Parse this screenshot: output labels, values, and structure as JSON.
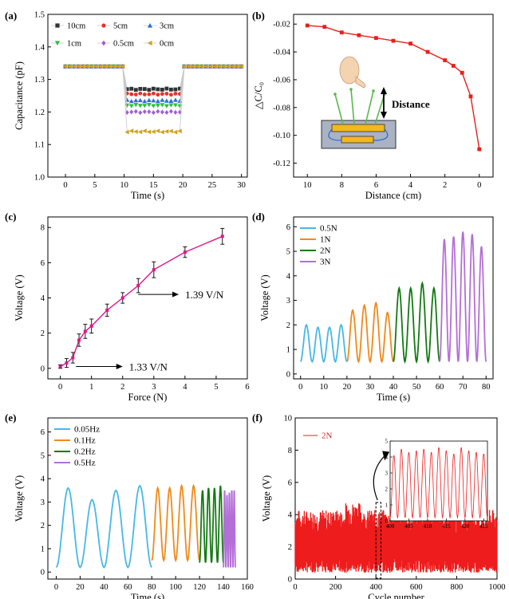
{
  "chart_data": [
    {
      "id": "a",
      "panel_label": "(a)",
      "type": "scatter",
      "xlabel": "Time (s)",
      "ylabel": "Capacitance (pF)",
      "xlim": [
        -3,
        31
      ],
      "ylim": [
        1.0,
        1.5
      ],
      "xticks": [
        0,
        5,
        10,
        15,
        20,
        25,
        30
      ],
      "yticks": [
        1.0,
        1.1,
        1.2,
        1.3,
        1.4,
        1.5
      ],
      "xtick_labels": [
        "0",
        "5",
        "10",
        "15",
        "20",
        "25",
        "30"
      ],
      "ytick_labels": [
        "1.0",
        "1.1",
        "1.2",
        "1.3",
        "1.4",
        "1.5"
      ],
      "baseline": 1.34,
      "press_start": 9.8,
      "press_end": 19.8,
      "legend_position": "top-left",
      "series": [
        {
          "name": "10cm",
          "color": "#333333",
          "marker": "square",
          "pressed": 1.27
        },
        {
          "name": "5cm",
          "color": "#e8302a",
          "marker": "circle",
          "pressed": 1.255
        },
        {
          "name": "3cm",
          "color": "#2a6fdc",
          "marker": "triangle-up",
          "pressed": 1.235
        },
        {
          "name": "1cm",
          "color": "#2bbf3c",
          "marker": "triangle-down",
          "pressed": 1.22
        },
        {
          "name": "0.5cm",
          "color": "#a35bd6",
          "marker": "diamond",
          "pressed": 1.2
        },
        {
          "name": "0cm",
          "color": "#d4a017",
          "marker": "triangle-left",
          "pressed": 1.14
        }
      ]
    },
    {
      "id": "b",
      "panel_label": "(b)",
      "type": "line",
      "xlabel": "Distance (cm)",
      "ylabel": "△C/C₀",
      "xlim": [
        10.8,
        -0.8
      ],
      "ylim": [
        -0.13,
        -0.013
      ],
      "xticks": [
        10,
        8,
        6,
        4,
        2,
        0
      ],
      "yticks": [
        -0.02,
        -0.04,
        -0.06,
        -0.08,
        -0.1,
        -0.12
      ],
      "xtick_labels": [
        "10",
        "8",
        "6",
        "4",
        "2",
        "0"
      ],
      "ytick_labels": [
        "-0.02",
        "-0.04",
        "-0.06",
        "-0.08",
        "-0.10",
        "-0.12"
      ],
      "x": [
        10,
        9,
        8,
        7,
        6,
        5,
        4,
        3,
        2,
        1.5,
        1,
        0.5,
        0
      ],
      "y": [
        -0.021,
        -0.022,
        -0.026,
        -0.028,
        -0.03,
        -0.032,
        -0.034,
        -0.04,
        -0.046,
        -0.05,
        -0.055,
        -0.072,
        -0.11
      ],
      "color": "#e8201a",
      "annotation": "Distance"
    },
    {
      "id": "c",
      "panel_label": "(c)",
      "type": "line",
      "xlabel": "Force (N)",
      "ylabel": "Voltage (V)",
      "xlim": [
        -0.4,
        6
      ],
      "ylim": [
        -0.6,
        8.6
      ],
      "xticks": [
        0,
        1,
        2,
        3,
        4,
        5,
        6
      ],
      "yticks": [
        0,
        2,
        4,
        6,
        8
      ],
      "xtick_labels": [
        "0",
        "1",
        "2",
        "3",
        "4",
        "5",
        "6"
      ],
      "ytick_labels": [
        "0",
        "2",
        "4",
        "6",
        "8"
      ],
      "x": [
        0,
        0.2,
        0.4,
        0.6,
        0.8,
        1.0,
        1.5,
        2.0,
        2.5,
        3.0,
        4.0,
        5.2
      ],
      "y": [
        0.1,
        0.3,
        0.6,
        1.6,
        2.1,
        2.4,
        3.3,
        4.0,
        4.7,
        5.6,
        6.6,
        7.5
      ],
      "err": [
        0.1,
        0.25,
        0.3,
        0.35,
        0.4,
        0.4,
        0.35,
        0.3,
        0.4,
        0.45,
        0.3,
        0.45
      ],
      "color": "#e0168c",
      "annotations": [
        {
          "text": "1.33 V/N",
          "arrow_from": [
            0.5,
            0.1
          ],
          "arrow_to": [
            2.0,
            0.1
          ]
        },
        {
          "text": "1.39 V/N",
          "arrow_from": [
            2.5,
            4.2
          ],
          "arrow_to": [
            3.8,
            4.2
          ]
        }
      ]
    },
    {
      "id": "d",
      "panel_label": "(d)",
      "type": "line",
      "xlabel": "Time (s)",
      "ylabel": "Voltage (V)",
      "xlim": [
        -3,
        83
      ],
      "ylim": [
        -0.2,
        6.4
      ],
      "xticks": [
        0,
        10,
        20,
        30,
        40,
        50,
        60,
        70,
        80
      ],
      "yticks": [
        0,
        1,
        2,
        3,
        4,
        5,
        6
      ],
      "xtick_labels": [
        "0",
        "10",
        "20",
        "30",
        "40",
        "50",
        "60",
        "70",
        "80"
      ],
      "ytick_labels": [
        "0",
        "1",
        "2",
        "3",
        "4",
        "5",
        "6"
      ],
      "legend_position": "top-left",
      "series": [
        {
          "name": "0.5N",
          "color": "#46b8e8",
          "t_start": 0,
          "t_end": 20,
          "period": 5,
          "peaks": [
            2.0,
            1.9,
            1.9,
            2.0
          ],
          "trough": 0.5
        },
        {
          "name": "1N",
          "color": "#f08a1c",
          "t_start": 20,
          "t_end": 40,
          "period": 5,
          "peaks": [
            2.6,
            2.8,
            2.9,
            2.5
          ],
          "trough": 0.5
        },
        {
          "name": "2N",
          "color": "#127a12",
          "t_start": 40,
          "t_end": 60,
          "period": 5,
          "peaks": [
            3.5,
            3.5,
            3.7,
            3.5
          ],
          "trough": 0.5
        },
        {
          "name": "3N",
          "color": "#b46ed8",
          "t_start": 60,
          "t_end": 80,
          "period": 4,
          "peaks": [
            5.5,
            5.6,
            5.8,
            5.7,
            5.2
          ],
          "trough": 0.5
        }
      ]
    },
    {
      "id": "e",
      "panel_label": "(e)",
      "type": "line",
      "xlabel": "Time (s)",
      "ylabel": "Voltage (V)",
      "xlim": [
        -7,
        160
      ],
      "ylim": [
        -0.3,
        6.6
      ],
      "xticks": [
        0,
        20,
        40,
        60,
        80,
        100,
        120,
        140,
        160
      ],
      "yticks": [
        0,
        1,
        2,
        3,
        4,
        5,
        6
      ],
      "xtick_labels": [
        "0",
        "20",
        "40",
        "60",
        "80",
        "100",
        "120",
        "140",
        "160"
      ],
      "ytick_labels": [
        "0",
        "1",
        "2",
        "3",
        "4",
        "5",
        "6"
      ],
      "legend_position": "top-left",
      "series": [
        {
          "name": "0.05Hz",
          "color": "#46b8e8",
          "t_start": 0,
          "t_end": 80,
          "period": 20,
          "peaks": [
            3.6,
            3.1,
            3.5,
            3.7
          ],
          "trough": 0.2
        },
        {
          "name": "0.1Hz",
          "color": "#f08a1c",
          "t_start": 80,
          "t_end": 120,
          "period": 10,
          "peaks": [
            3.6,
            3.6,
            3.7,
            3.7
          ],
          "trough": 0.5
        },
        {
          "name": "0.2Hz",
          "color": "#127a12",
          "t_start": 120,
          "t_end": 140,
          "period": 5,
          "peaks": [
            3.5,
            3.6,
            3.6,
            3.7
          ],
          "trough": 0.4
        },
        {
          "name": "0.5Hz",
          "color": "#b46ed8",
          "t_start": 140,
          "t_end": 150,
          "period": 2,
          "peaks": [
            3.5,
            3.3,
            3.4,
            3.5,
            3.5
          ],
          "trough": 0.2
        }
      ]
    },
    {
      "id": "f",
      "panel_label": "(f)",
      "type": "line",
      "xlabel": "Cycle number",
      "ylabel": "Voltage (V)",
      "xlim": [
        0,
        1000
      ],
      "ylim": [
        0,
        10
      ],
      "xticks": [
        0,
        200,
        400,
        600,
        800,
        1000
      ],
      "yticks": [
        0,
        2,
        4,
        6,
        8,
        10
      ],
      "xtick_labels": [
        "0",
        "200",
        "400",
        "600",
        "800",
        "1000"
      ],
      "ytick_labels": [
        "0",
        "2",
        "4",
        "6",
        "8",
        "10"
      ],
      "series": [
        {
          "name": "2N",
          "color": "#ee1c1c"
        }
      ],
      "signal_low": 0.4,
      "signal_high": 3.5,
      "highlight_box": [
        400,
        425
      ],
      "inset": {
        "xlim": [
          400,
          426
        ],
        "ylim": [
          0,
          5
        ],
        "xticks": [
          400,
          405,
          410,
          415,
          420,
          425
        ],
        "yticks": [
          0,
          1,
          2,
          3,
          4,
          5
        ],
        "xtick_labels": [
          "400",
          "405",
          "410",
          "415",
          "420",
          "425"
        ],
        "ytick_labels": [
          "0",
          "1",
          "2",
          "3",
          "4",
          "5"
        ],
        "peaks": [
          4.1,
          4.5,
          4.3,
          4.4,
          4.5,
          4.3,
          4.6,
          4.4,
          4.2,
          4.6,
          4.4,
          4.3,
          4.2
        ],
        "trough": 0.2
      }
    }
  ]
}
